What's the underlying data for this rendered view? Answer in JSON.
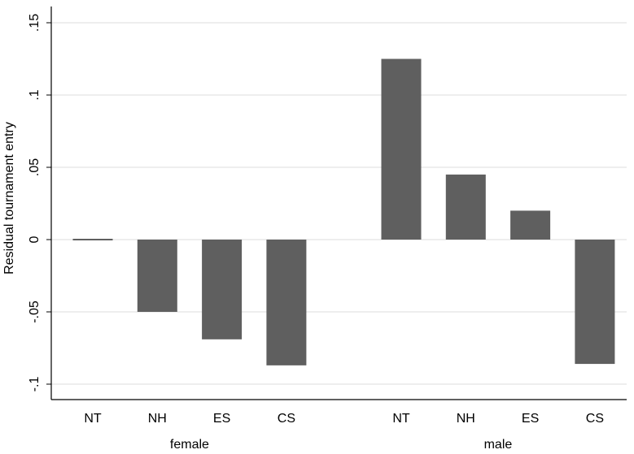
{
  "chart_data": {
    "type": "bar",
    "ylabel": "Residual tournament entry",
    "ylim": [
      -0.11,
      0.155
    ],
    "yticks": [
      -0.1,
      -0.05,
      0,
      0.05,
      0.1,
      0.15
    ],
    "ytick_labels": [
      "-.1",
      "-.05",
      "0",
      ".05",
      ".1",
      ".15"
    ],
    "grid": true,
    "bar_color": "#5f5f5f",
    "groups": [
      {
        "name": "female",
        "categories": [
          "NT",
          "NH",
          "ES",
          "CS"
        ],
        "values": [
          0.001,
          -0.05,
          -0.069,
          -0.087
        ]
      },
      {
        "name": "male",
        "categories": [
          "NT",
          "NH",
          "ES",
          "CS"
        ],
        "values": [
          0.125,
          0.045,
          0.02,
          -0.086
        ]
      }
    ]
  }
}
